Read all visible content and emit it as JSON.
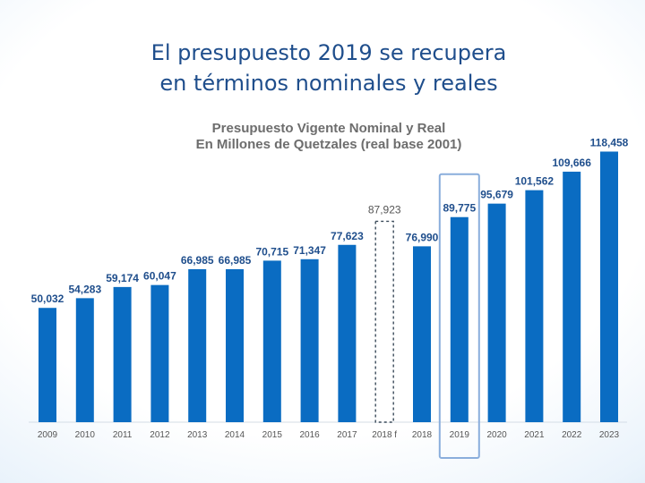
{
  "slide": {
    "title_line1": "El presupuesto 2019 se recupera",
    "title_line2": "en términos nominales y reales"
  },
  "colors": {
    "bar": "#0a6cc2",
    "title": "#1f4e8c",
    "highlight": "#8aaedc"
  },
  "chart_data": {
    "type": "bar",
    "title": "Presupuesto Vigente Nominal y Real",
    "subtitle": "En Millones de Quetzales (real base 2001)",
    "categories": [
      "2009",
      "2010",
      "2011",
      "2012",
      "2013",
      "2014",
      "2015",
      "2016",
      "2017",
      "2018 f",
      "2018",
      "2019",
      "2020",
      "2021",
      "2022",
      "2023"
    ],
    "values": [
      50032,
      54283,
      59174,
      60047,
      66985,
      66985,
      70715,
      71347,
      77623,
      87923,
      76990,
      89775,
      95679,
      101562,
      109666,
      118458
    ],
    "data_labels": [
      "50,032",
      "54,283",
      "59,174",
      "60,047",
      "66,985",
      "66,985",
      "70,715",
      "71,347",
      "77,623",
      "87,923",
      "76,990",
      "89,775",
      "95,679",
      "101,562",
      "109,666",
      "118,458"
    ],
    "outlined_category": "2018 f",
    "highlighted_category": "2019",
    "ylim": [
      0,
      130000
    ],
    "xlabel": "",
    "ylabel": "",
    "grid": false,
    "legend": "none"
  }
}
